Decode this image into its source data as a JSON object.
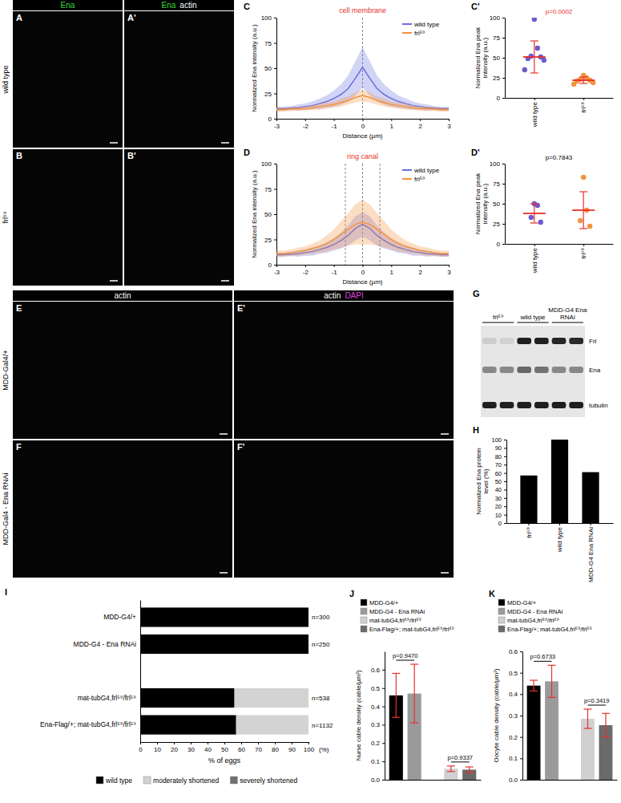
{
  "figure": {
    "top_images": {
      "headers": [
        [
          {
            "text": "Ena",
            "color": "#3ddc3d"
          }
        ],
        [
          {
            "text": "Ena",
            "color": "#3ddc3d"
          },
          {
            "text": "actin",
            "color": "#ffffff"
          }
        ]
      ],
      "rows": [
        {
          "label": "wild type",
          "letters": [
            "A",
            "A'"
          ]
        },
        {
          "label": "frl⁵⁹",
          "letters": [
            "B",
            "B'"
          ]
        }
      ]
    },
    "bottom_images": {
      "headers": [
        [
          {
            "text": "actin",
            "color": "#ffffff"
          }
        ],
        [
          {
            "text": "actin",
            "color": "#ffffff"
          },
          {
            "text": "DAPI",
            "color": "#e040e0"
          }
        ]
      ],
      "rows": [
        {
          "label": "MDD-Gal4/+",
          "letters": [
            "E",
            "E'"
          ]
        },
        {
          "label": "MDD-Gal4 - Ena RNAi",
          "letters": [
            "F",
            "F'"
          ]
        }
      ]
    },
    "blot": {
      "letter": "G",
      "columns": [
        "frl⁵⁹",
        "wild type",
        "MDD-G4 Ena RNAi"
      ],
      "rows": [
        "Frl",
        "Ena",
        "tubulin"
      ]
    }
  },
  "chart_data": [
    {
      "panel": "C",
      "type": "line",
      "title": "cell membrane",
      "x_label": "Distance (µm)",
      "y_label": "Normalized Ena intensity (a.u.)",
      "x": [
        -3,
        -2.75,
        -2.5,
        -2.25,
        -2,
        -1.75,
        -1.5,
        -1.25,
        -1,
        -0.75,
        -0.5,
        -0.25,
        0,
        0.25,
        0.5,
        0.75,
        1,
        1.25,
        1.5,
        1.75,
        2,
        2.25,
        2.5,
        2.75,
        3
      ],
      "series": [
        {
          "name": "wild type",
          "color": "#6b6fe0",
          "values": [
            10,
            10,
            10.5,
            11,
            12,
            13,
            15,
            17,
            20,
            24,
            30,
            40,
            51,
            40,
            30,
            24,
            20,
            17,
            15,
            13,
            12,
            11,
            10.5,
            10,
            10
          ],
          "error": [
            2,
            2,
            2,
            3,
            3,
            4,
            5,
            6,
            8,
            10,
            13,
            17,
            20,
            17,
            13,
            10,
            8,
            6,
            5,
            4,
            3,
            3,
            2,
            2,
            2
          ]
        },
        {
          "name": "frl⁵⁹",
          "color": "#f5923e",
          "values": [
            9,
            9,
            9.5,
            10,
            10,
            11,
            12,
            13,
            14,
            16,
            18,
            21,
            23,
            21,
            18,
            16,
            14,
            13,
            12,
            11,
            10,
            10,
            9.5,
            9,
            9
          ],
          "error": [
            2,
            2,
            2,
            2,
            2,
            2,
            3,
            3,
            3,
            4,
            4,
            5,
            6,
            5,
            4,
            4,
            3,
            3,
            3,
            2,
            2,
            2,
            2,
            2,
            2
          ]
        }
      ],
      "xlim": [
        -3,
        3
      ],
      "xticks": [
        -3,
        -2,
        -1,
        0,
        1,
        2,
        3
      ],
      "ylim": [
        0,
        100
      ],
      "yticks": [
        0,
        25,
        50,
        75,
        100
      ],
      "vlines": [
        0
      ],
      "legend": "top-right"
    },
    {
      "panel": "D",
      "type": "line",
      "title": "ring canal",
      "x_label": "Distance (µm)",
      "y_label": "Normalized Ena intensity (a.u.)",
      "x": [
        -3,
        -2.75,
        -2.5,
        -2.25,
        -2,
        -1.75,
        -1.5,
        -1.25,
        -1,
        -0.75,
        -0.5,
        -0.25,
        0,
        0.25,
        0.5,
        0.75,
        1,
        1.25,
        1.5,
        1.75,
        2,
        2.25,
        2.5,
        2.75,
        3
      ],
      "series": [
        {
          "name": "wild type",
          "color": "#6b6fe0",
          "values": [
            10,
            10,
            10.5,
            11,
            12,
            13,
            15,
            17,
            20,
            24,
            29,
            36,
            40,
            36,
            29,
            24,
            20,
            17,
            15,
            13,
            12,
            11,
            10.5,
            10,
            10
          ],
          "error": [
            2,
            2,
            2,
            3,
            3,
            4,
            4,
            5,
            6,
            8,
            10,
            12,
            12,
            12,
            10,
            8,
            6,
            5,
            4,
            4,
            3,
            3,
            2,
            2,
            2
          ]
        },
        {
          "name": "frl⁵⁹",
          "color": "#f5923e",
          "values": [
            11,
            11,
            12,
            13,
            14,
            16,
            18,
            21,
            25,
            30,
            35,
            40,
            42,
            40,
            35,
            30,
            25,
            21,
            18,
            16,
            14,
            13,
            12,
            11,
            11
          ],
          "error": [
            3,
            3,
            3,
            4,
            4,
            5,
            6,
            8,
            10,
            13,
            16,
            20,
            22,
            20,
            16,
            13,
            10,
            8,
            6,
            5,
            4,
            4,
            3,
            3,
            3
          ]
        }
      ],
      "xlim": [
        -3,
        3
      ],
      "xticks": [
        -3,
        -2,
        -1,
        0,
        1,
        2,
        3
      ],
      "ylim": [
        0,
        100
      ],
      "yticks": [
        0,
        25,
        50,
        75,
        100
      ],
      "vlines": [
        -0.6,
        0,
        0.6
      ],
      "legend": "top-right"
    },
    {
      "panel": "C'",
      "type": "scatter",
      "y_label": "Normalized Ena peak intensity (a.u.)",
      "categories": [
        "wild type",
        "frl⁵⁹"
      ],
      "values": [
        [
          98,
          62,
          52,
          51,
          49,
          47,
          35
        ],
        [
          28,
          25,
          23,
          22,
          21,
          19,
          17
        ]
      ],
      "colors": [
        "#6a5acd",
        "#f5923e"
      ],
      "mean": [
        51,
        22
      ],
      "sd": [
        20,
        4
      ],
      "ylim": [
        0,
        100
      ],
      "yticks": [
        0,
        25,
        50,
        75,
        100
      ],
      "annotation": {
        "text": "p=0.0002",
        "color": "#e8302a"
      }
    },
    {
      "panel": "D'",
      "type": "scatter",
      "y_label": "Normalized Ena peak intensity (a.u.)",
      "categories": [
        "wild type",
        "frl⁵⁹"
      ],
      "values": [
        [
          50,
          48,
          33,
          27
        ],
        [
          83,
          42,
          29,
          22
        ]
      ],
      "colors": [
        "#6a5acd",
        "#f5923e"
      ],
      "mean": [
        38,
        42
      ],
      "sd": [
        12,
        23
      ],
      "ylim": [
        0,
        100
      ],
      "yticks": [
        0,
        25,
        50,
        75,
        100
      ],
      "annotation": {
        "text": "p=0.7843",
        "color": "#000000"
      }
    },
    {
      "panel": "H",
      "type": "bar",
      "y_label": "Normalized Ena protein level (%)",
      "categories": [
        "frl⁵⁹",
        "wild type",
        "MDD-G4 Ena RNAi"
      ],
      "values": [
        57,
        100,
        61
      ],
      "color": "#000000",
      "ylim": [
        0,
        100
      ],
      "yticks": [
        0,
        10,
        20,
        30,
        40,
        50,
        60,
        70,
        80,
        90,
        100
      ]
    },
    {
      "panel": "I",
      "type": "bar",
      "orientation": "horizontal",
      "stacked": true,
      "x_label": "% of eggs",
      "annotation": "(%)",
      "categories": [
        "MDD-G4/+",
        "MDD-G4 - Ena RNAi",
        null,
        "mat-tubG4,frl⁵⁹/frl⁵⁹",
        "Ena-Flag/+; mat-tubG4,frl⁵⁹/frl⁵⁹"
      ],
      "series": [
        {
          "name": "wild type",
          "color": "#000000",
          "values": [
            100,
            100,
            null,
            56,
            57
          ]
        },
        {
          "name": "moderately shortened",
          "color": "#d3d3d3",
          "values": [
            0,
            0,
            null,
            44,
            43
          ]
        },
        {
          "name": "severely shortened",
          "color": "#707070",
          "values": [
            0,
            0,
            null,
            0,
            0
          ]
        }
      ],
      "n_labels": [
        "n=300",
        "n=250",
        null,
        "n=538",
        "n=1132"
      ],
      "xlim": [
        0,
        100
      ],
      "xticks": [
        0,
        10,
        20,
        30,
        40,
        50,
        60,
        70,
        80,
        90,
        100
      ],
      "legend": "bottom"
    },
    {
      "panel": "J",
      "type": "bar",
      "y_label": "Nurse cable density (cable/µm²)",
      "categories": [
        "MDD-G4/+",
        "MDD-G4 - Ena RNAi",
        "mat-tubG4,frl⁵⁹/frl⁵⁹",
        "Ena-Flag/+; mat-tubG4,frl⁵⁹/frl⁵⁹"
      ],
      "values": [
        0.46,
        0.47,
        0.06,
        0.055
      ],
      "error": [
        0.12,
        0.16,
        0.015,
        0.015
      ],
      "colors": [
        "#000000",
        "#9a9a9a",
        "#d0d0d0",
        "#6a6a6a"
      ],
      "ylim": [
        0,
        0.7
      ],
      "yticks": [
        {
          "value": 0,
          "label": "0.0"
        },
        {
          "value": 0.1,
          "label": "0.1"
        },
        {
          "value": 0.2,
          "label": "0.2"
        },
        {
          "value": 0.3,
          "label": "0.3"
        },
        {
          "value": 0.4,
          "label": "0.4"
        },
        {
          "value": 0.5,
          "label": "0.5"
        },
        {
          "value": 0.6,
          "label": "0.6"
        }
      ],
      "annotations": [
        "p=0.9470",
        "p=0.9337"
      ],
      "legend": "top",
      "tick_labels": "y"
    },
    {
      "panel": "K",
      "type": "bar",
      "y_label": "Oocyte cable density (cable/µm²)",
      "categories": [
        "MDD-G4/+",
        "MDD-G4 - Ena RNAi",
        "mat-tubG4,frl⁵⁹/frl⁵⁹",
        "Ena-Flag/+; mat-tubG4,frl⁵⁹/frl⁵⁹"
      ],
      "values": [
        0.44,
        0.46,
        0.285,
        0.255
      ],
      "error": [
        0.025,
        0.075,
        0.045,
        0.055
      ],
      "colors": [
        "#000000",
        "#9a9a9a",
        "#d0d0d0",
        "#6a6a6a"
      ],
      "ylim": [
        0,
        0.6
      ],
      "yticks": [
        {
          "value": 0,
          "label": "0.0"
        },
        {
          "value": 0.1,
          "label": "0.1"
        },
        {
          "value": 0.2,
          "label": "0.2"
        },
        {
          "value": 0.3,
          "label": "0.3"
        },
        {
          "value": 0.4,
          "label": "0.4"
        },
        {
          "value": 0.5,
          "label": "0.5"
        },
        {
          "value": 0.6,
          "label": "0.6"
        }
      ],
      "annotations": [
        "p=0.6733",
        "p=0.3419"
      ],
      "legend": "top",
      "tick_labels": "y"
    }
  ]
}
